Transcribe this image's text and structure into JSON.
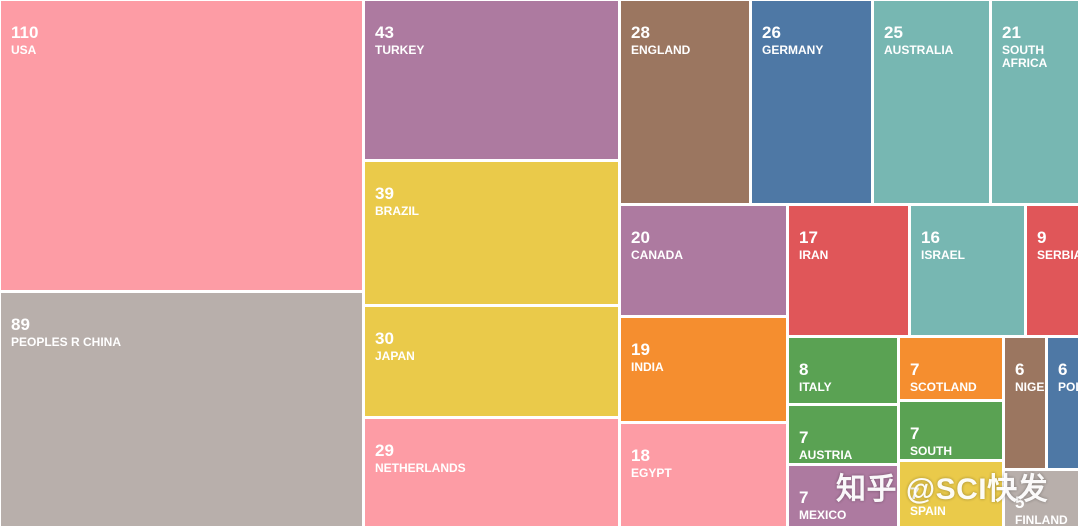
{
  "chart_data": {
    "type": "treemap",
    "title": "",
    "items": [
      {
        "label": "USA",
        "value": 110,
        "color": "#fd9ca5"
      },
      {
        "label": "PEOPLES R CHINA",
        "value": 89,
        "color": "#b8afab"
      },
      {
        "label": "TURKEY",
        "value": 43,
        "color": "#ad7aa0"
      },
      {
        "label": "BRAZIL",
        "value": 39,
        "color": "#eaca4a"
      },
      {
        "label": "JAPAN",
        "value": 30,
        "color": "#eaca4a"
      },
      {
        "label": "NETHERLANDS",
        "value": 29,
        "color": "#fd9ca5"
      },
      {
        "label": "ENGLAND",
        "value": 28,
        "color": "#9b7660"
      },
      {
        "label": "GERMANY",
        "value": 26,
        "color": "#4e78a5"
      },
      {
        "label": "AUSTRALIA",
        "value": 25,
        "color": "#77b7b2"
      },
      {
        "label": "SOUTH AFRICA",
        "value": 21,
        "color": "#77b7b2"
      },
      {
        "label": "CANADA",
        "value": 20,
        "color": "#ad7aa0"
      },
      {
        "label": "INDIA",
        "value": 19,
        "color": "#f58e2f"
      },
      {
        "label": "EGYPT",
        "value": 18,
        "color": "#fd9ca5"
      },
      {
        "label": "IRAN",
        "value": 17,
        "color": "#e05659"
      },
      {
        "label": "ISRAEL",
        "value": 16,
        "color": "#77b7b2"
      },
      {
        "label": "SERBIA",
        "value": 9,
        "color": "#e05659"
      },
      {
        "label": "ITALY",
        "value": 8,
        "color": "#5aa253"
      },
      {
        "label": "SCOTLAND",
        "value": 7,
        "color": "#f58e2f"
      },
      {
        "label": "NIGERIA",
        "value": 6,
        "color": "#9b7660"
      },
      {
        "label": "POLAND",
        "value": 6,
        "color": "#4e78a5"
      },
      {
        "label": "AUSTRIA",
        "value": 7,
        "color": "#5aa253"
      },
      {
        "label": "SOUTH KOREA",
        "value": 7,
        "color": "#5aa253"
      },
      {
        "label": "MEXICO",
        "value": 7,
        "color": "#ad7aa0"
      },
      {
        "label": "SPAIN",
        "value": 7,
        "color": "#eaca4a"
      },
      {
        "label": "FINLAND",
        "value": 5,
        "color": "#b8afab"
      }
    ]
  },
  "watermark": "知乎 @SCI快发"
}
